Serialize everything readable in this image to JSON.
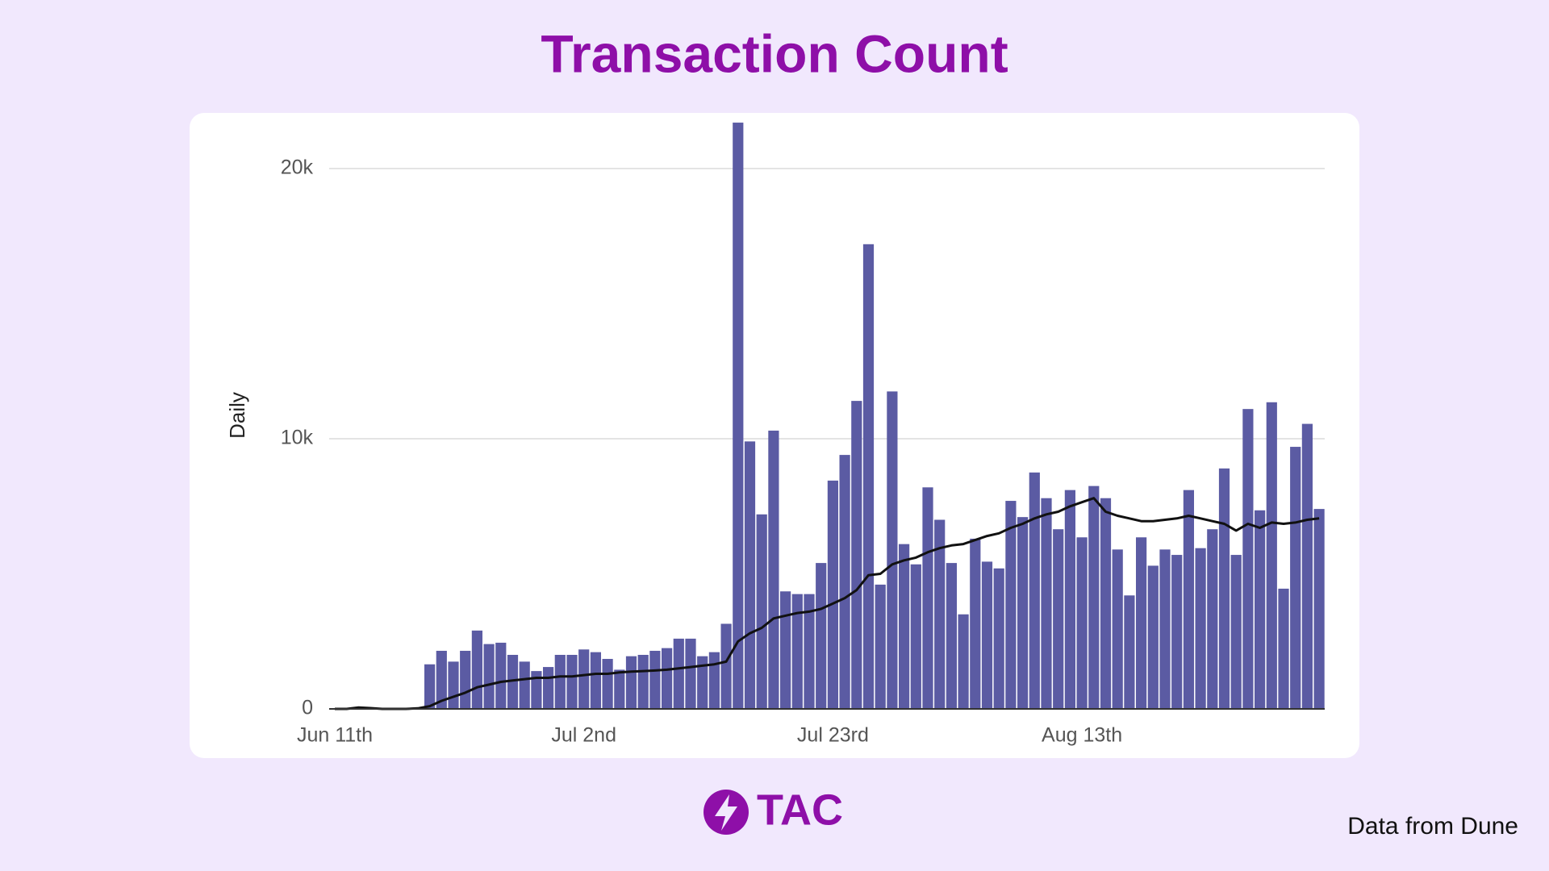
{
  "title": "Transaction Count",
  "brand": "TAC",
  "source": "Data from Dune",
  "chart_data": {
    "type": "bar",
    "y_label": "Daily",
    "categories": [
      "Jun 11th",
      null,
      null,
      null,
      null,
      null,
      null,
      null,
      null,
      null,
      null,
      null,
      null,
      null,
      null,
      null,
      null,
      null,
      null,
      null,
      null,
      "Jul 2nd",
      null,
      null,
      null,
      null,
      null,
      null,
      null,
      null,
      null,
      null,
      null,
      null,
      null,
      null,
      null,
      null,
      null,
      null,
      null,
      null,
      "Jul 23rd",
      null,
      null,
      null,
      null,
      null,
      null,
      null,
      null,
      null,
      null,
      null,
      null,
      null,
      null,
      null,
      null,
      null,
      null,
      null,
      null,
      "Aug 13th",
      null,
      null,
      null,
      null,
      null,
      null,
      null,
      null,
      null,
      null,
      null,
      null,
      null,
      null,
      null,
      null,
      null,
      null,
      null,
      null
    ],
    "series": [
      {
        "type": "bar",
        "color": "#5b5ba3",
        "values": [
          0,
          0,
          20,
          0,
          0,
          0,
          0,
          50,
          1650,
          2150,
          1750,
          2150,
          2900,
          2400,
          2450,
          2000,
          1750,
          1400,
          1550,
          2000,
          2000,
          2200,
          2100,
          1850,
          1450,
          1950,
          2000,
          2150,
          2250,
          2600,
          2600,
          1950,
          2100,
          3150,
          21700,
          9900,
          7200,
          10300,
          4350,
          4250,
          4250,
          5400,
          8450,
          9400,
          11400,
          17200,
          4600,
          11750,
          6100,
          5350,
          8200,
          7000,
          5400,
          3500,
          6300,
          5450,
          5200,
          7700,
          7100,
          8750,
          7800,
          6650,
          8100,
          6350,
          8250,
          7800,
          5900,
          4200,
          6350,
          5300,
          5900,
          5700,
          8100,
          5950,
          6650,
          8900,
          5700,
          11100,
          7350,
          11350,
          4450,
          9700,
          10550,
          7400
        ]
      },
      {
        "type": "line",
        "color": "#111111",
        "values": [
          0,
          0,
          50,
          30,
          0,
          0,
          0,
          20,
          100,
          300,
          450,
          600,
          800,
          900,
          1000,
          1050,
          1100,
          1150,
          1150,
          1200,
          1200,
          1250,
          1300,
          1300,
          1350,
          1380,
          1400,
          1420,
          1450,
          1500,
          1550,
          1600,
          1650,
          1750,
          2500,
          2800,
          3000,
          3350,
          3450,
          3550,
          3600,
          3700,
          3900,
          4100,
          4400,
          4950,
          5000,
          5350,
          5500,
          5600,
          5800,
          5950,
          6050,
          6100,
          6250,
          6400,
          6500,
          6700,
          6850,
          7050,
          7200,
          7300,
          7500,
          7650,
          7800,
          7300,
          7150,
          7050,
          6950,
          6950,
          7000,
          7050,
          7150,
          7050,
          6950,
          6850,
          6600,
          6850,
          6700,
          6900,
          6850,
          6900,
          7000,
          7050
        ]
      }
    ],
    "ylim": [
      0,
      22000
    ],
    "yticks": [
      0,
      {
        "value": 10000,
        "label": "10k"
      },
      {
        "value": 20000,
        "label": "20k"
      }
    ],
    "grid": true
  }
}
